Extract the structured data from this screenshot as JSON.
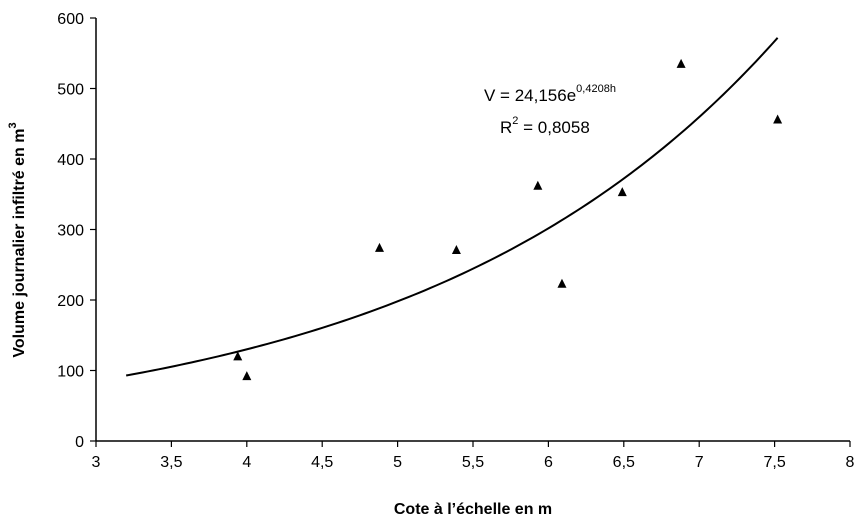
{
  "chart_data": {
    "type": "scatter",
    "xlabel": "Cote à l’échelle en m",
    "ylabel": "Volume journalier infiltré en m",
    "ylabel_sup": "3",
    "xlim": [
      3,
      8
    ],
    "ylim": [
      0,
      600
    ],
    "x_ticks": [
      3,
      3.5,
      4,
      4.5,
      5,
      5.5,
      6,
      6.5,
      7,
      7.5,
      8
    ],
    "x_tick_labels": [
      "3",
      "3,5",
      "4",
      "4,5",
      "5",
      "5,5",
      "6",
      "6,5",
      "7",
      "7,5",
      "8"
    ],
    "y_ticks": [
      0,
      100,
      200,
      300,
      400,
      500,
      600
    ],
    "y_tick_labels": [
      "0",
      "100",
      "200",
      "300",
      "400",
      "500",
      "600"
    ],
    "grid": false,
    "series": [
      {
        "marker": "triangle",
        "x": [
          3.94,
          4.0,
          4.88,
          5.39,
          5.93,
          6.09,
          6.49,
          6.88,
          7.52
        ],
        "y": [
          120,
          92,
          274,
          271,
          362,
          223,
          353,
          535,
          456
        ]
      }
    ],
    "trendline": {
      "type": "exponential",
      "a": 24.156,
      "b": 0.4208,
      "x_range": [
        3.2,
        7.52
      ],
      "equation_text": "V = 24,156e",
      "equation_exponent": "0,4208h",
      "r2_label": "R",
      "r2_sup": "2",
      "r2_value": " = 0,8058"
    },
    "colors": {
      "marks": "#000000",
      "axis": "#000000",
      "background": "#ffffff"
    }
  }
}
